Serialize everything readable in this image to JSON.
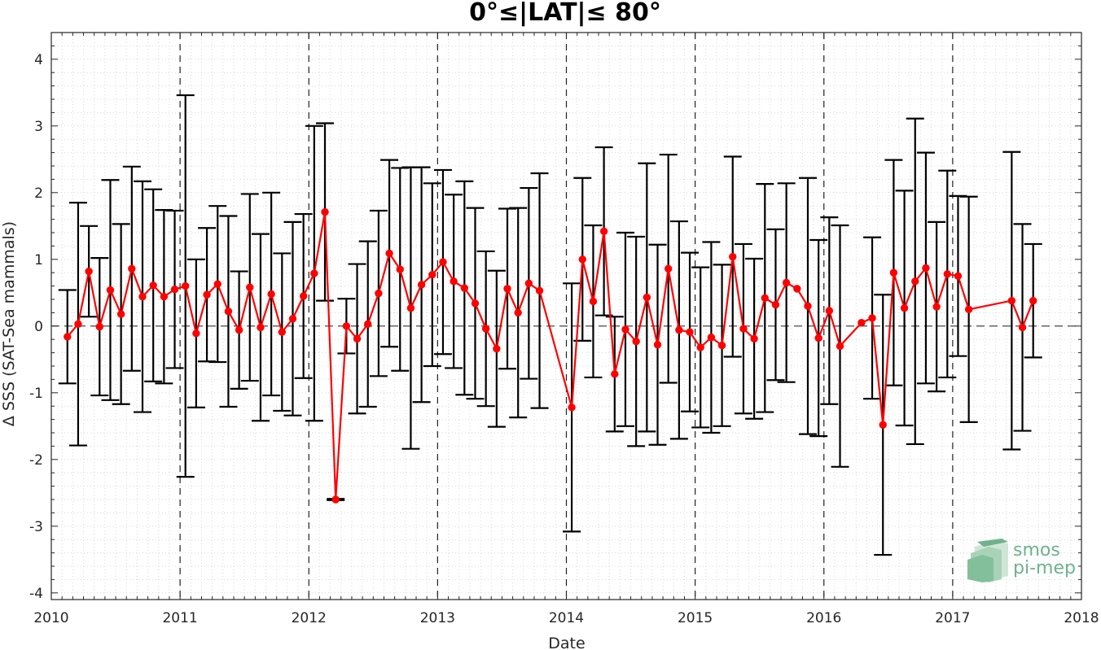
{
  "chart_data": {
    "type": "line",
    "title": "0°≤|LAT|≤ 80°",
    "xlabel": "Date",
    "ylabel": "Δ SSS (SAT-Sea mammals)",
    "xlim": [
      2010,
      2018
    ],
    "ylim": [
      -4.1,
      4.4
    ],
    "x_ticks": [
      "2010",
      "2011",
      "2012",
      "2013",
      "2014",
      "2015",
      "2016",
      "2017",
      "2018"
    ],
    "y_ticks": [
      "4",
      "3",
      "2",
      "1",
      "0",
      "-1",
      "-2",
      "-3",
      "-4"
    ],
    "year_lines": [
      2011,
      2012,
      2013,
      2014,
      2015,
      2016,
      2017
    ],
    "zero_line": 0,
    "grid": "minor-dotted",
    "colors": {
      "series": "#ff0000",
      "errorbar": "#000000",
      "grid": "#d9d9d9",
      "logo": "#6fb38e"
    },
    "series": [
      {
        "x": [
          "2010-02",
          "2010-03",
          "2010-04",
          "2010-05",
          "2010-06",
          "2010-07",
          "2010-08",
          "2010-09",
          "2010-10",
          "2010-11",
          "2010-12",
          "2011-01",
          "2011-02",
          "2011-03",
          "2011-04",
          "2011-05",
          "2011-06",
          "2011-07",
          "2011-08",
          "2011-09",
          "2011-10",
          "2011-11",
          "2011-12",
          "2012-01",
          "2012-02",
          "2012-03",
          "2012-04",
          "2012-05",
          "2012-06",
          "2012-07",
          "2012-08",
          "2012-09",
          "2012-10",
          "2012-11",
          "2012-12",
          "2013-01",
          "2013-02",
          "2013-03",
          "2013-04",
          "2013-05",
          "2013-06",
          "2013-07",
          "2013-08",
          "2013-09",
          "2013-10",
          "2014-01",
          "2014-02",
          "2014-03",
          "2014-04",
          "2014-05",
          "2014-06",
          "2014-07",
          "2014-08",
          "2014-09",
          "2014-10",
          "2014-11",
          "2014-12",
          "2015-01",
          "2015-02",
          "2015-03",
          "2015-04",
          "2015-05",
          "2015-06",
          "2015-07",
          "2015-08",
          "2015-09",
          "2015-10",
          "2015-11",
          "2015-12",
          "2016-01",
          "2016-02",
          "2016-04",
          "2016-05",
          "2016-06",
          "2016-07",
          "2016-08",
          "2016-09",
          "2016-10",
          "2016-11",
          "2016-12",
          "2017-01",
          "2017-02",
          "2017-06",
          "2017-07",
          "2017-08"
        ],
        "y": [
          -0.16,
          0.03,
          0.82,
          -0.01,
          0.54,
          0.18,
          0.86,
          0.44,
          0.61,
          0.44,
          0.55,
          0.6,
          -0.11,
          0.47,
          0.63,
          0.22,
          -0.06,
          0.58,
          -0.02,
          0.48,
          -0.09,
          0.11,
          0.45,
          0.79,
          1.71,
          -2.6,
          0.0,
          -0.19,
          0.03,
          0.49,
          1.09,
          0.85,
          0.27,
          0.62,
          0.77,
          0.96,
          0.67,
          0.57,
          0.34,
          -0.04,
          -0.34,
          0.56,
          0.2,
          0.64,
          0.53,
          -1.22,
          1.0,
          0.37,
          1.42,
          -0.72,
          -0.05,
          -0.23,
          0.43,
          -0.28,
          0.86,
          -0.06,
          -0.09,
          -0.32,
          -0.17,
          -0.29,
          1.04,
          -0.04,
          -0.19,
          0.42,
          0.32,
          0.65,
          0.56,
          0.3,
          -0.18,
          0.23,
          -0.3,
          0.05,
          0.12,
          -1.48,
          0.8,
          0.27,
          0.67,
          0.87,
          0.29,
          0.78,
          0.75,
          0.25,
          0.38,
          -0.02,
          0.38
        ],
        "err": [
          0.7,
          1.82,
          0.68,
          1.03,
          1.65,
          1.35,
          1.53,
          1.73,
          1.44,
          1.3,
          1.18,
          2.86,
          1.11,
          1.0,
          1.17,
          1.43,
          0.88,
          1.4,
          1.4,
          1.52,
          1.18,
          1.45,
          1.23,
          2.21,
          1.33,
          0.01,
          0.41,
          1.12,
          1.24,
          1.24,
          1.4,
          1.52,
          2.11,
          1.76,
          1.37,
          1.38,
          1.3,
          1.6,
          1.43,
          1.16,
          1.17,
          1.2,
          1.57,
          1.43,
          1.76,
          1.86,
          1.22,
          1.14,
          1.26,
          0.86,
          1.45,
          1.57,
          2.01,
          1.5,
          1.71,
          1.63,
          1.19,
          1.2,
          1.43,
          1.21,
          1.5,
          1.27,
          1.2,
          1.71,
          1.13,
          1.49,
          0.0,
          1.92,
          1.47,
          1.4,
          1.81,
          0.0,
          1.21,
          1.95,
          1.69,
          1.76,
          2.44,
          1.73,
          1.27,
          1.55,
          1.2,
          1.69,
          2.23,
          1.55,
          0.85
        ]
      }
    ]
  },
  "logo": {
    "line1": "smos",
    "line2": "pi-mep"
  }
}
